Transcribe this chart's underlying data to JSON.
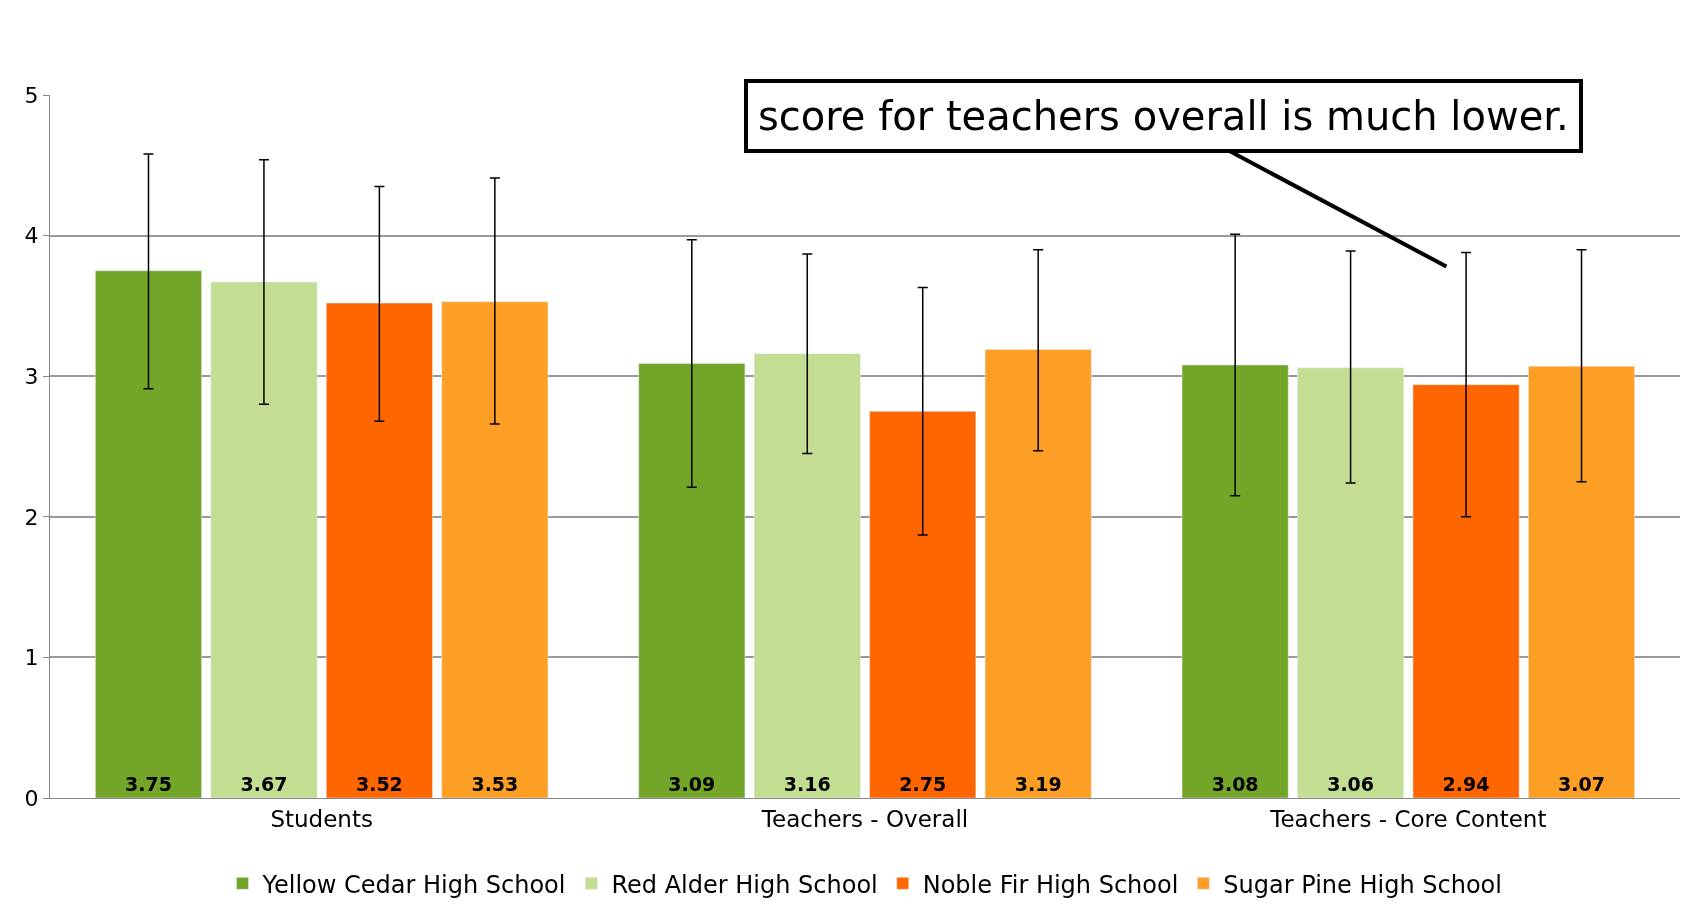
{
  "chart_data": {
    "type": "bar",
    "categories": [
      "Students",
      "Teachers - Overall",
      "Teachers - Core Content"
    ],
    "series": [
      {
        "name": "Yellow Cedar High School",
        "color": "#72a528",
        "values": [
          3.75,
          3.09,
          3.08
        ],
        "errors": [
          [
            2.91,
            4.58
          ],
          [
            2.21,
            3.97
          ],
          [
            2.15,
            4.01
          ]
        ]
      },
      {
        "name": "Red Alder High School",
        "color": "#c3dd93",
        "values": [
          3.67,
          3.16,
          3.06
        ],
        "errors": [
          [
            2.8,
            4.54
          ],
          [
            2.45,
            3.87
          ],
          [
            2.24,
            3.89
          ]
        ]
      },
      {
        "name": "Noble Fir High School",
        "color": "#ff6600",
        "values": [
          3.52,
          2.75,
          2.94
        ],
        "errors": [
          [
            2.68,
            4.35
          ],
          [
            1.87,
            3.63
          ],
          [
            2.0,
            3.88
          ]
        ]
      },
      {
        "name": "Sugar Pine High School",
        "color": "#fd9f25",
        "values": [
          3.53,
          3.19,
          3.07
        ],
        "errors": [
          [
            2.66,
            4.41
          ],
          [
            2.47,
            3.9
          ],
          [
            2.25,
            3.9
          ]
        ]
      }
    ],
    "ylim": [
      0,
      5
    ],
    "yticks": [
      0,
      1,
      2,
      3,
      4,
      5
    ],
    "grid": "y",
    "legend": "bottom",
    "data_labels": true,
    "annotations": [
      "score for teachers overall is much lower."
    ]
  }
}
